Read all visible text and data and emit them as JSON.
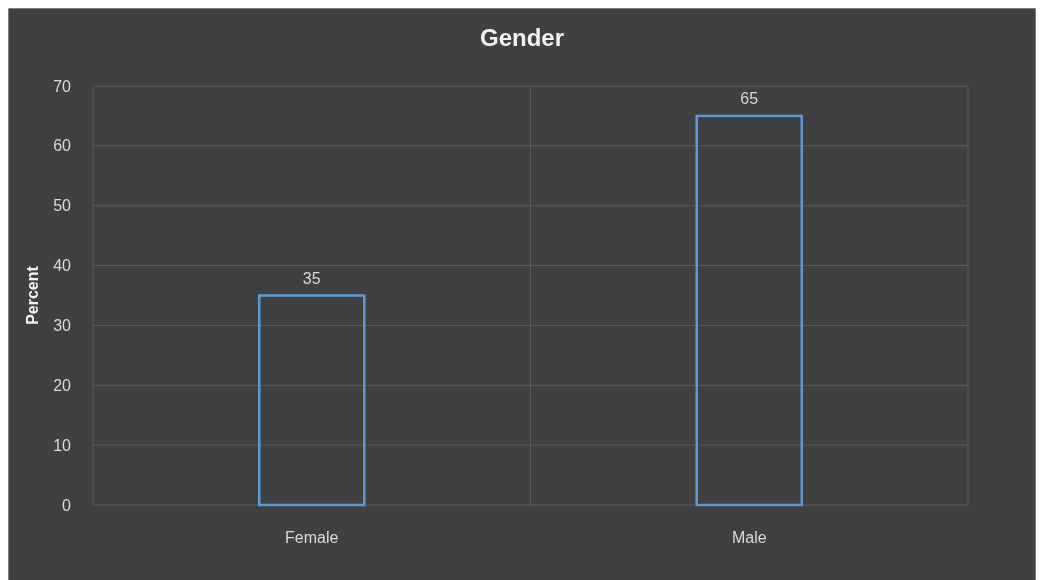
{
  "chart_data": {
    "type": "bar",
    "title": "Gender",
    "ylabel": "Percent",
    "categories": [
      "Female",
      "Male"
    ],
    "values": [
      35,
      65
    ],
    "color": "#5b9bd5",
    "ylim": [
      0,
      70
    ],
    "yticks": [
      0,
      10,
      20,
      30,
      40,
      50,
      60,
      70
    ],
    "grid": true,
    "data_labels": true
  }
}
